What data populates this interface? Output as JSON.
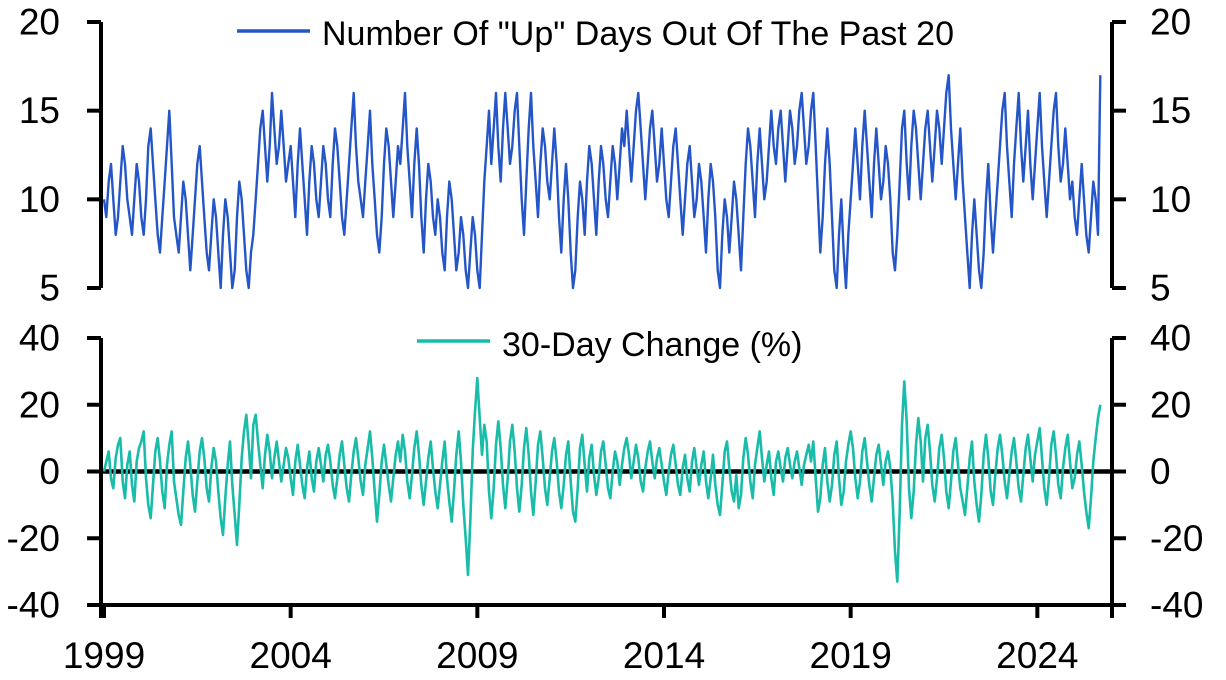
{
  "page": {
    "background": "#ffffff",
    "axis_color": "#000000",
    "text_color": "#000000"
  },
  "chart_data": [
    {
      "type": "line",
      "legend": "Number Of \"Up\" Days Out Of The Past 20",
      "color": "#2556c8",
      "ylim": [
        5,
        20
      ],
      "y_ticks": [
        20,
        15,
        10,
        5
      ],
      "y_tick_labels": [
        "20",
        "15",
        "10",
        "5"
      ],
      "x_domain": [
        1999,
        2026
      ],
      "x_start": 1999,
      "points_per_year": 16,
      "grid": false,
      "legend_position": "top-center",
      "values_by_year": [
        [
          10,
          9,
          11,
          12,
          10,
          8,
          9,
          11,
          13,
          12,
          10,
          9,
          8,
          10,
          12,
          11
        ],
        [
          9,
          8,
          10,
          13,
          14,
          12,
          10,
          8,
          7,
          9,
          11,
          13,
          15,
          12,
          9,
          8
        ],
        [
          7,
          9,
          11,
          10,
          8,
          6,
          8,
          10,
          12,
          13,
          11,
          9,
          7,
          6,
          8,
          10
        ],
        [
          9,
          7,
          5,
          8,
          10,
          9,
          7,
          5,
          6,
          9,
          11,
          10,
          8,
          6,
          5,
          7
        ],
        [
          8,
          10,
          12,
          14,
          15,
          13,
          11,
          13,
          16,
          14,
          12,
          13,
          15,
          13,
          11,
          12
        ],
        [
          13,
          11,
          9,
          12,
          14,
          12,
          10,
          8,
          11,
          13,
          12,
          10,
          9,
          11,
          13,
          12
        ],
        [
          10,
          9,
          12,
          14,
          13,
          11,
          9,
          8,
          10,
          12,
          14,
          16,
          13,
          11,
          10,
          9
        ],
        [
          11,
          13,
          15,
          12,
          10,
          8,
          7,
          9,
          12,
          14,
          13,
          11,
          9,
          11,
          13,
          12
        ],
        [
          14,
          16,
          13,
          11,
          9,
          12,
          14,
          12,
          9,
          7,
          10,
          12,
          11,
          9,
          8,
          10
        ],
        [
          9,
          7,
          6,
          9,
          11,
          10,
          8,
          6,
          7,
          9,
          8,
          6,
          5,
          7,
          9,
          8
        ],
        [
          6,
          5,
          8,
          11,
          13,
          15,
          12,
          14,
          16,
          13,
          11,
          14,
          16,
          14,
          12,
          13
        ],
        [
          15,
          16,
          13,
          10,
          8,
          11,
          14,
          16,
          13,
          11,
          9,
          12,
          14,
          13,
          11,
          10
        ],
        [
          12,
          14,
          12,
          9,
          7,
          10,
          12,
          10,
          7,
          5,
          6,
          9,
          11,
          10,
          8,
          11
        ],
        [
          13,
          12,
          10,
          8,
          11,
          13,
          12,
          10,
          9,
          11,
          13,
          12,
          10,
          12,
          14,
          13
        ],
        [
          15,
          13,
          11,
          13,
          15,
          16,
          14,
          12,
          10,
          12,
          14,
          15,
          13,
          11,
          12,
          14
        ],
        [
          12,
          10,
          9,
          11,
          13,
          14,
          12,
          10,
          8,
          10,
          12,
          13,
          11,
          9,
          10,
          12
        ],
        [
          11,
          9,
          7,
          10,
          12,
          11,
          9,
          6,
          5,
          8,
          10,
          9,
          7,
          9,
          11,
          10
        ],
        [
          8,
          6,
          9,
          12,
          14,
          13,
          11,
          9,
          12,
          14,
          12,
          10,
          11,
          13,
          15,
          13
        ],
        [
          12,
          14,
          15,
          13,
          11,
          13,
          15,
          14,
          12,
          13,
          15,
          16,
          14,
          12,
          13,
          15
        ],
        [
          16,
          13,
          10,
          7,
          9,
          12,
          14,
          12,
          9,
          6,
          5,
          8,
          10,
          7,
          5,
          8
        ],
        [
          10,
          12,
          14,
          12,
          10,
          13,
          15,
          13,
          11,
          9,
          12,
          14,
          12,
          10,
          11,
          13
        ],
        [
          12,
          10,
          7,
          6,
          8,
          11,
          14,
          15,
          12,
          10,
          13,
          15,
          14,
          12,
          10,
          12
        ],
        [
          14,
          15,
          13,
          11,
          13,
          15,
          14,
          12,
          14,
          16,
          17,
          14,
          12,
          10,
          12,
          14
        ],
        [
          11,
          9,
          7,
          5,
          8,
          10,
          8,
          6,
          5,
          7,
          10,
          12,
          9,
          7,
          9,
          11
        ],
        [
          13,
          15,
          16,
          13,
          11,
          9,
          12,
          14,
          16,
          13,
          11,
          13,
          15,
          12,
          10,
          12
        ],
        [
          14,
          16,
          13,
          11,
          9,
          11,
          13,
          15,
          16,
          13,
          11,
          12,
          14,
          12,
          10,
          11
        ],
        [
          9,
          8,
          10,
          12,
          10,
          8,
          7,
          9,
          11,
          10,
          8,
          17
        ]
      ]
    },
    {
      "type": "line",
      "legend": "30-Day Change (%)",
      "color": "#18bca9",
      "ylim": [
        -40,
        40
      ],
      "y_ticks": [
        40,
        20,
        0,
        -20,
        -40
      ],
      "y_tick_labels": [
        "40",
        "20",
        "0",
        "-20",
        "-40"
      ],
      "zero_line": true,
      "x_ticks": [
        1999,
        2004,
        2009,
        2014,
        2019,
        2024
      ],
      "x_tick_labels": [
        "1999",
        "2004",
        "2009",
        "2014",
        "2019",
        "2024"
      ],
      "x_domain": [
        1999,
        2026
      ],
      "x_start": 1999,
      "points_per_year": 16,
      "grid": false,
      "legend_position": "top-center",
      "values_by_year": [
        [
          0,
          3,
          6,
          -2,
          -5,
          4,
          8,
          10,
          -3,
          -8,
          2,
          6,
          -4,
          -9,
          3,
          7
        ],
        [
          9,
          12,
          -2,
          -10,
          -14,
          -4,
          6,
          10,
          3,
          -6,
          -11,
          2,
          8,
          12,
          -3,
          -8
        ],
        [
          -13,
          -16,
          -6,
          4,
          9,
          2,
          -7,
          -12,
          -3,
          6,
          10,
          4,
          -5,
          -9,
          1,
          7
        ],
        [
          3,
          -6,
          -14,
          -19,
          -8,
          2,
          9,
          -4,
          -13,
          -22,
          -10,
          4,
          12,
          17,
          8,
          -2
        ],
        [
          14,
          17,
          9,
          2,
          -5,
          5,
          11,
          6,
          -2,
          4,
          9,
          3,
          -3,
          2,
          7,
          4
        ],
        [
          -2,
          -7,
          3,
          8,
          2,
          -4,
          -8,
          1,
          6,
          -2,
          -6,
          3,
          7,
          2,
          -3,
          5
        ],
        [
          8,
          3,
          -4,
          -8,
          -2,
          5,
          9,
          2,
          -5,
          -9,
          -1,
          6,
          10,
          4,
          -3,
          -7
        ],
        [
          2,
          7,
          12,
          4,
          -6,
          -15,
          -7,
          3,
          8,
          2,
          -4,
          -9,
          -2,
          5,
          9,
          3
        ],
        [
          11,
          6,
          -3,
          -8,
          -1,
          7,
          12,
          5,
          -4,
          -10,
          -3,
          4,
          9,
          1,
          -6,
          -11
        ],
        [
          -4,
          3,
          9,
          -2,
          -9,
          -15,
          -6,
          5,
          12,
          3,
          -10,
          -20,
          -31,
          -15,
          6,
          18
        ],
        [
          28,
          16,
          5,
          14,
          9,
          -6,
          -14,
          -5,
          8,
          15,
          7,
          -4,
          -11,
          -2,
          9,
          14
        ],
        [
          6,
          -5,
          -12,
          -4,
          7,
          13,
          5,
          -6,
          -13,
          -3,
          8,
          12,
          4,
          -5,
          -10,
          -2
        ],
        [
          6,
          10,
          3,
          -6,
          -11,
          -4,
          5,
          9,
          -3,
          -12,
          -15,
          -5,
          7,
          11,
          2,
          -6
        ],
        [
          4,
          8,
          -1,
          -7,
          -2,
          6,
          9,
          2,
          -5,
          -8,
          0,
          6,
          3,
          -4,
          2,
          7
        ],
        [
          10,
          5,
          -2,
          3,
          8,
          4,
          -3,
          -6,
          1,
          6,
          9,
          3,
          -2,
          4,
          7,
          2
        ],
        [
          -3,
          -7,
          0,
          5,
          8,
          2,
          -4,
          -7,
          1,
          5,
          -2,
          -6,
          3,
          7,
          1,
          -4
        ],
        [
          2,
          6,
          -3,
          -8,
          -2,
          5,
          -4,
          -10,
          -13,
          -4,
          6,
          9,
          1,
          -6,
          -9,
          -1
        ],
        [
          -11,
          -7,
          4,
          10,
          5,
          -3,
          -8,
          2,
          7,
          12,
          4,
          -3,
          2,
          6,
          -2,
          -7
        ],
        [
          3,
          6,
          1,
          -3,
          4,
          7,
          2,
          -2,
          3,
          6,
          1,
          -4,
          2,
          5,
          8,
          3
        ],
        [
          9,
          -2,
          -12,
          -8,
          2,
          7,
          -3,
          -9,
          -4,
          5,
          9,
          -2,
          -10,
          -6,
          3,
          8
        ],
        [
          12,
          7,
          -2,
          -8,
          -3,
          6,
          10,
          3,
          -4,
          -9,
          -2,
          5,
          8,
          2,
          -4,
          3
        ],
        [
          6,
          1,
          -9,
          -24,
          -33,
          -12,
          14,
          27,
          15,
          -5,
          -14,
          -6,
          8,
          16,
          9,
          -3
        ],
        [
          10,
          14,
          6,
          -4,
          -9,
          -2,
          7,
          11,
          4,
          -6,
          -11,
          -3,
          6,
          10,
          2,
          -5
        ],
        [
          -9,
          -13,
          -5,
          4,
          9,
          -3,
          -10,
          -15,
          -7,
          5,
          11,
          4,
          -6,
          -10,
          -1,
          7
        ],
        [
          11,
          5,
          -3,
          -8,
          -1,
          6,
          10,
          3,
          -5,
          -9,
          -1,
          7,
          11,
          4,
          -3,
          5
        ],
        [
          9,
          13,
          4,
          -5,
          -10,
          -2,
          8,
          12,
          5,
          -4,
          -8,
          1,
          7,
          11,
          3,
          -5
        ],
        [
          -2,
          5,
          9,
          2,
          -6,
          -12,
          -17,
          -8,
          3,
          10,
          16,
          20
        ]
      ]
    }
  ]
}
